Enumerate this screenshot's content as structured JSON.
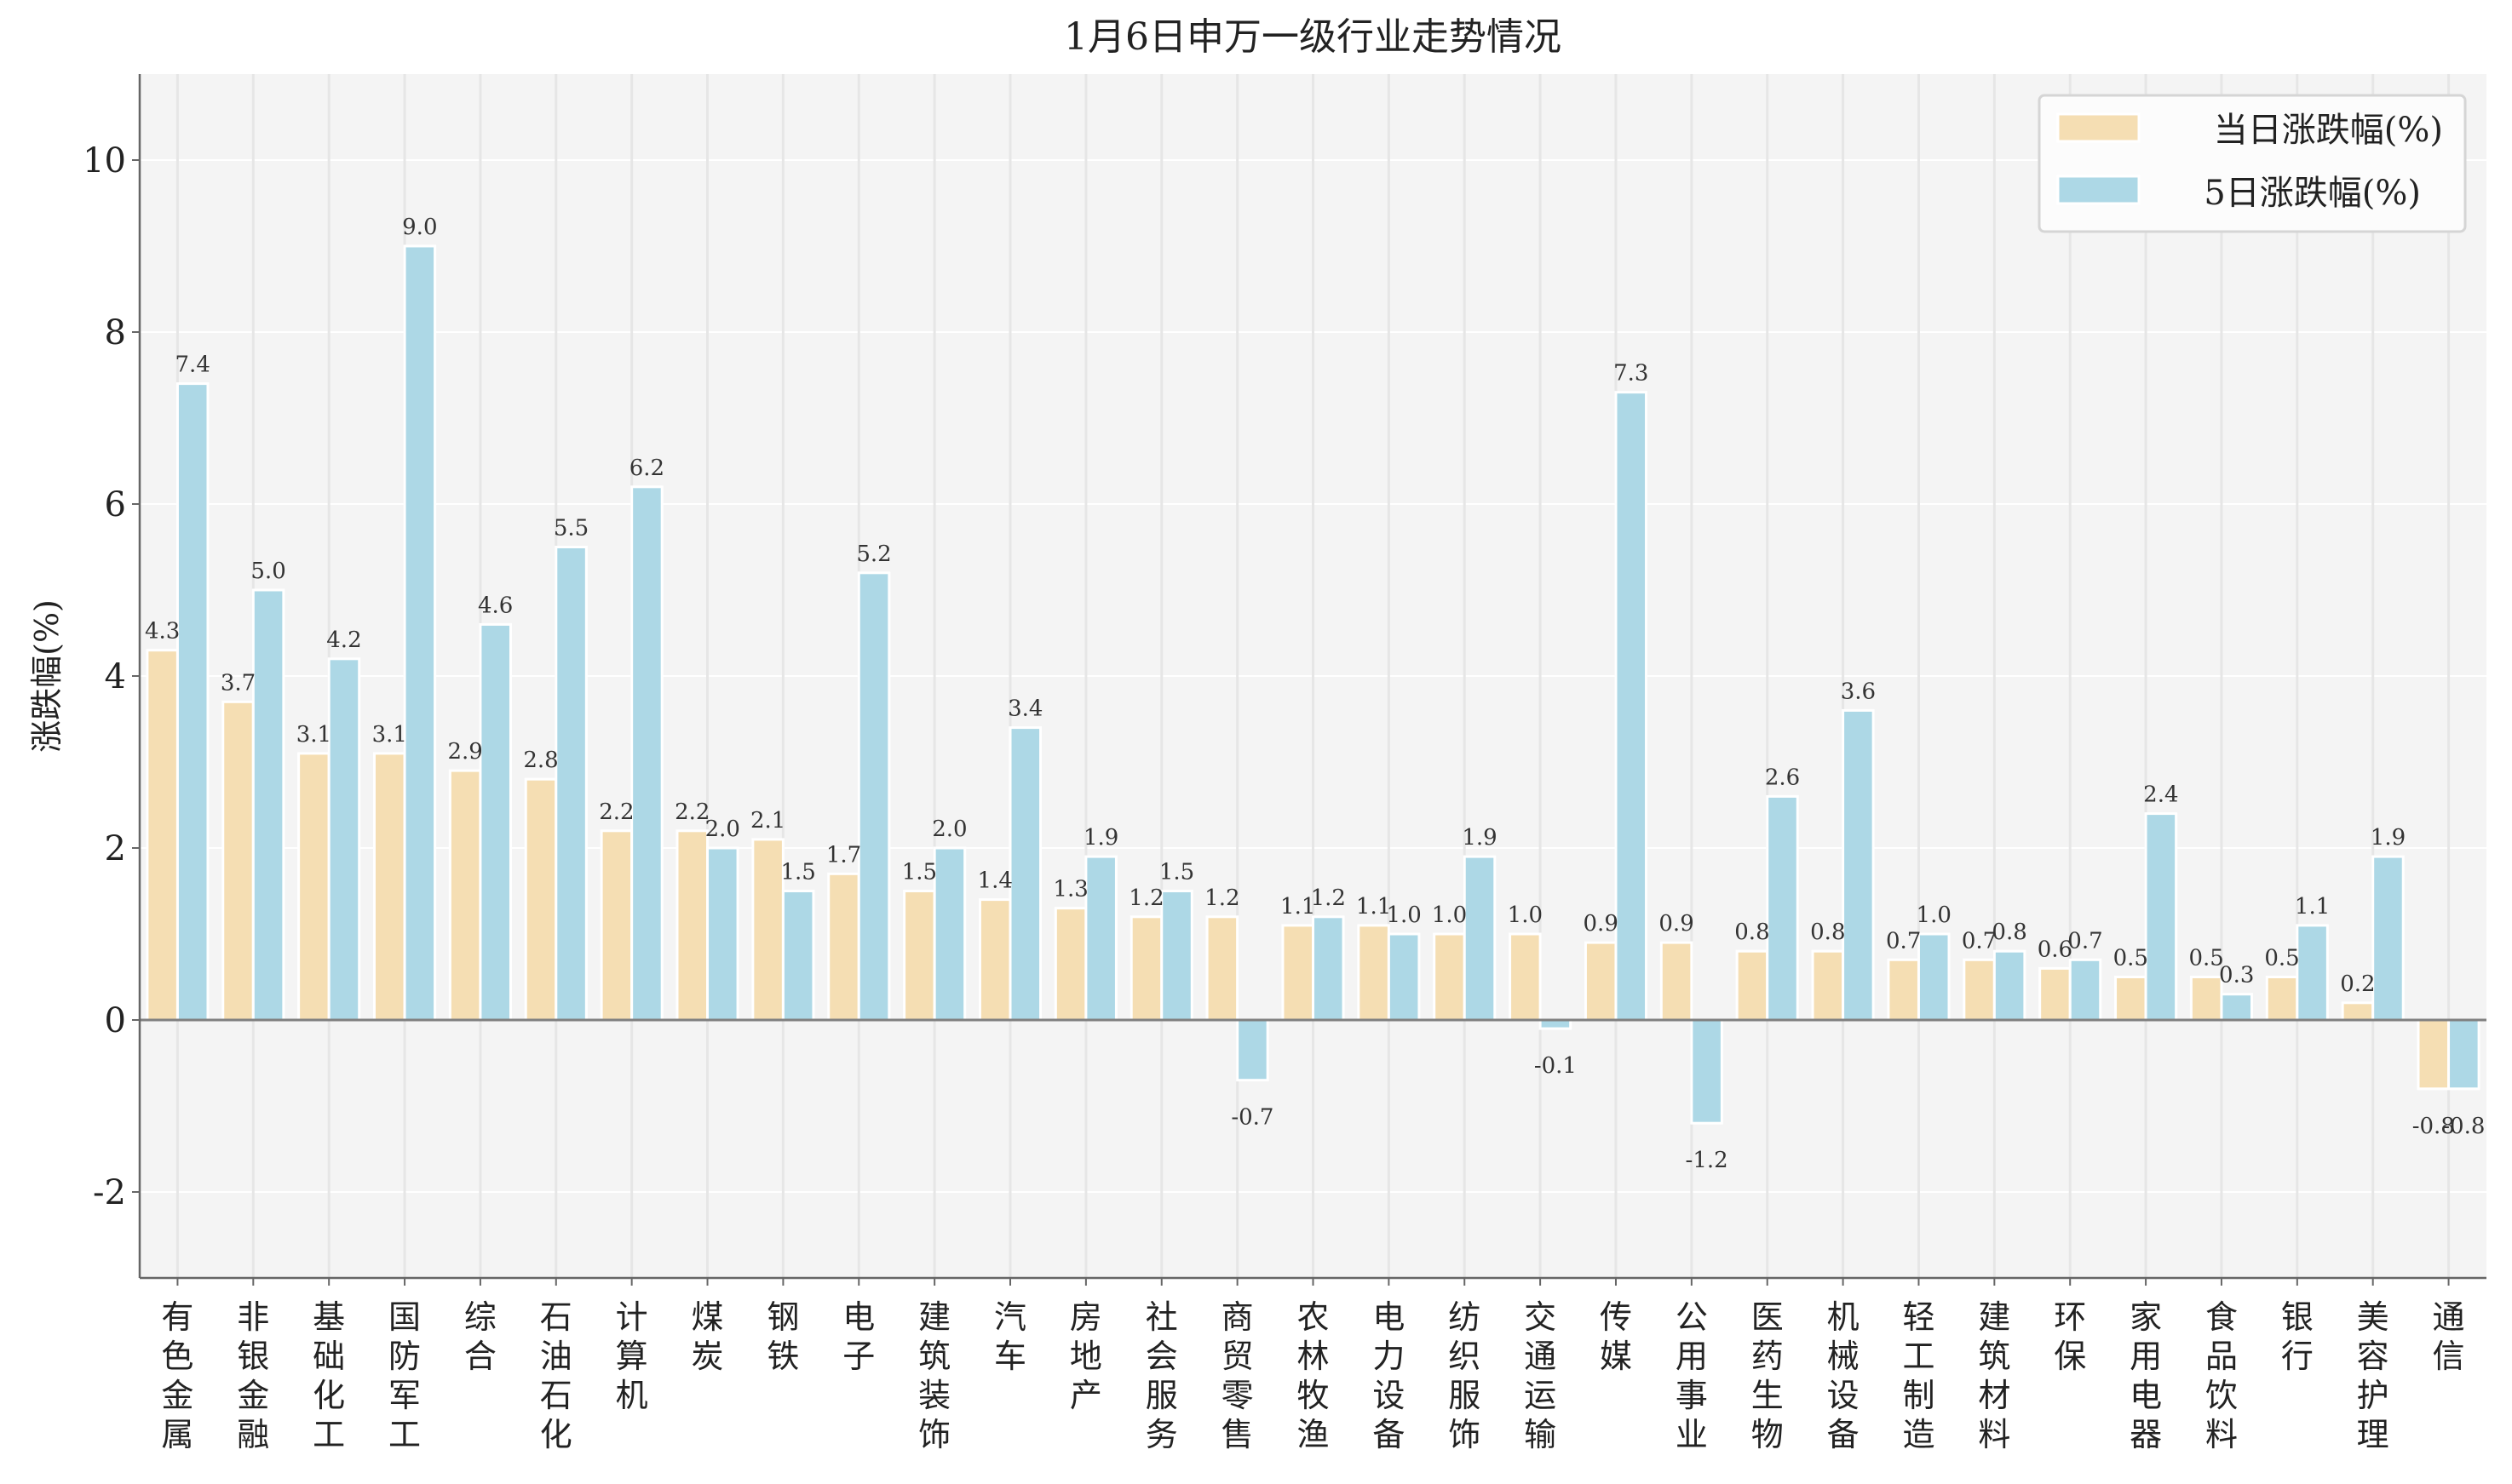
{
  "chart_data": {
    "type": "bar",
    "title": "1月6日申万一级行业走势情况",
    "xlabel": "",
    "ylabel": "涨跌幅(%)",
    "ylim": [
      -3,
      11
    ],
    "yticks": [
      -2,
      0,
      2,
      4,
      6,
      8,
      10
    ],
    "grid": true,
    "legend_position": "top-right",
    "categories": [
      "有色金属",
      "非银金融",
      "基础化工",
      "国防军工",
      "综合",
      "石油石化",
      "计算机",
      "煤炭",
      "钢铁",
      "电子",
      "建筑装饰",
      "汽车",
      "房地产",
      "社会服务",
      "商贸零售",
      "农林牧渔",
      "电力设备",
      "纺织服饰",
      "交通运输",
      "传媒",
      "公用事业",
      "医药生物",
      "机械设备",
      "轻工制造",
      "建筑材料",
      "环保",
      "家用电器",
      "食品饮料",
      "银行",
      "美容护理",
      "通信"
    ],
    "series": [
      {
        "name": "当日涨跌幅(%)",
        "color": "#F5DEB3",
        "values": [
          4.3,
          3.7,
          3.1,
          3.1,
          2.9,
          2.8,
          2.2,
          2.2,
          2.1,
          1.7,
          1.5,
          1.4,
          1.3,
          1.2,
          1.2,
          1.1,
          1.1,
          1.0,
          1.0,
          0.9,
          0.9,
          0.8,
          0.8,
          0.7,
          0.7,
          0.6,
          0.5,
          0.5,
          0.5,
          0.2,
          -0.8
        ]
      },
      {
        "name": "5日涨跌幅(%)",
        "color": "#ADD8E6",
        "values": [
          7.4,
          5.0,
          4.2,
          9.0,
          4.6,
          5.5,
          6.2,
          2.0,
          1.5,
          5.2,
          2.0,
          3.4,
          1.9,
          1.5,
          -0.7,
          1.2,
          1.0,
          1.9,
          -0.1,
          7.3,
          -1.2,
          2.6,
          3.6,
          1.0,
          0.8,
          0.7,
          2.4,
          0.3,
          1.1,
          1.9,
          -0.8
        ]
      }
    ]
  }
}
